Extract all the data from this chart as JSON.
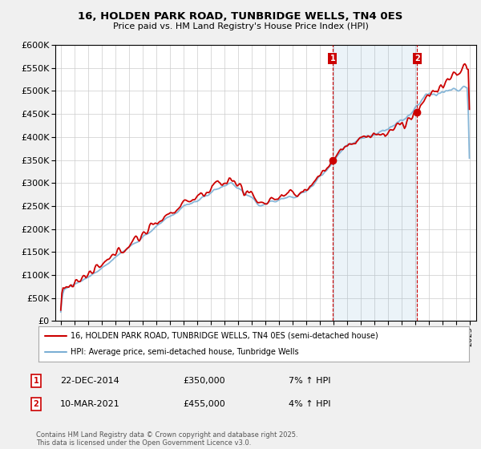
{
  "title": "16, HOLDEN PARK ROAD, TUNBRIDGE WELLS, TN4 0ES",
  "subtitle": "Price paid vs. HM Land Registry's House Price Index (HPI)",
  "legend_line1": "16, HOLDEN PARK ROAD, TUNBRIDGE WELLS, TN4 0ES (semi-detached house)",
  "legend_line2": "HPI: Average price, semi-detached house, Tunbridge Wells",
  "annotation1": {
    "num": "1",
    "date": "22-DEC-2014",
    "price": "£350,000",
    "pct": "7% ↑ HPI"
  },
  "annotation2": {
    "num": "2",
    "date": "10-MAR-2021",
    "price": "£455,000",
    "pct": "4% ↑ HPI"
  },
  "footnote": "Contains HM Land Registry data © Crown copyright and database right 2025.\nThis data is licensed under the Open Government Licence v3.0.",
  "ylim": [
    0,
    600000
  ],
  "yticks": [
    0,
    50000,
    100000,
    150000,
    200000,
    250000,
    300000,
    350000,
    400000,
    450000,
    500000,
    550000,
    600000
  ],
  "price_color": "#cc0000",
  "hpi_color": "#7bafd4",
  "shade_color": "#ddeeff",
  "background_color": "#f0f0f0",
  "plot_bg_color": "#ffffff",
  "marker1_year": 2014.96,
  "marker2_year": 2021.17,
  "marker1_price": 350000,
  "marker2_price": 455000
}
